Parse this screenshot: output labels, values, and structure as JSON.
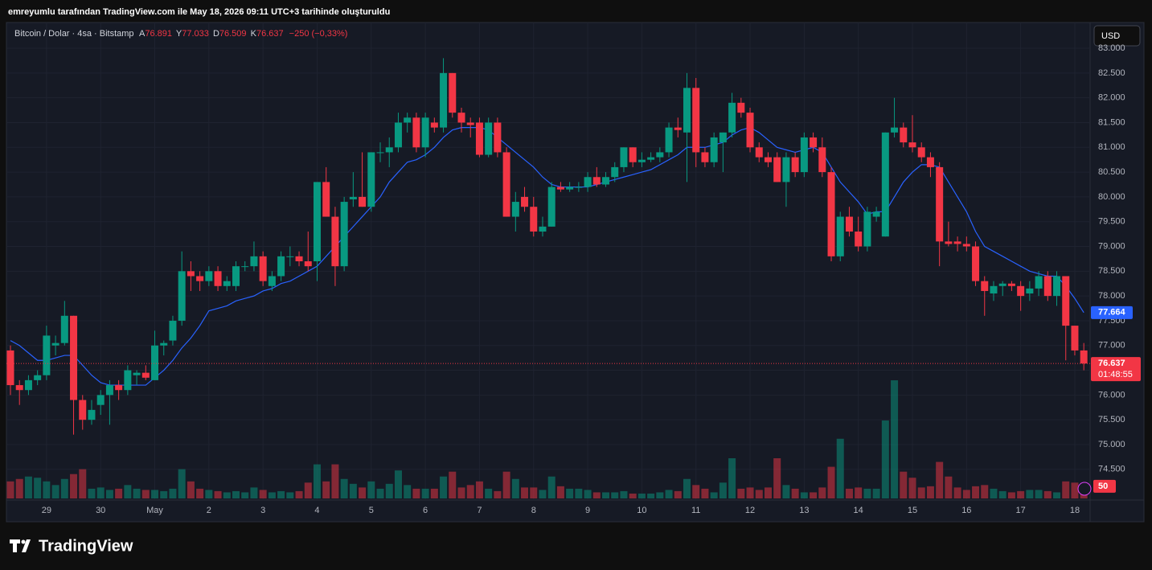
{
  "header": {
    "caption": "emreyumlu tarafından TradingView.com ile May 18, 2026 09:11 UTC+3 tarihinde oluşturuldu"
  },
  "legend": {
    "symbol": "Bitcoin / Dolar · 4sa · Bitstamp",
    "o_key": "A",
    "o": "76.891",
    "h_key": "Y",
    "h": "77.033",
    "l_key": "D",
    "l": "76.509",
    "c_key": "K",
    "c": "76.637",
    "change": "−250 (−0,33%)"
  },
  "currency_button": "USD",
  "logo": "TradingView",
  "chart_data": {
    "type": "candlestick",
    "up_color": "#089981",
    "down_color": "#f23645",
    "ma_color": "#2962ff",
    "grid": true,
    "ylim": [
      73880,
      83520
    ],
    "yticks": [
      {
        "value": 74500,
        "label": "74.500"
      },
      {
        "value": 75000,
        "label": "75.000"
      },
      {
        "value": 75500,
        "label": "75.500"
      },
      {
        "value": 76000,
        "label": "76.000"
      },
      {
        "value": 76500,
        "label": "76.500"
      },
      {
        "value": 77000,
        "label": "77.000"
      },
      {
        "value": 77500,
        "label": "77.500"
      },
      {
        "value": 78000,
        "label": "78.000"
      },
      {
        "value": 78500,
        "label": "78.500"
      },
      {
        "value": 79000,
        "label": "79.000"
      },
      {
        "value": 79500,
        "label": "79.500"
      },
      {
        "value": 80000,
        "label": "80.000"
      },
      {
        "value": 80500,
        "label": "80.500"
      },
      {
        "value": 81000,
        "label": "81.000"
      },
      {
        "value": 81500,
        "label": "81.500"
      },
      {
        "value": 82000,
        "label": "82.000"
      },
      {
        "value": 82500,
        "label": "82.500"
      },
      {
        "value": 83000,
        "label": "83.000"
      }
    ],
    "categories": [
      null,
      null,
      null,
      null,
      "29",
      null,
      null,
      null,
      null,
      null,
      "30",
      null,
      null,
      null,
      null,
      null,
      "May",
      null,
      null,
      null,
      null,
      null,
      "2",
      null,
      null,
      null,
      null,
      null,
      "3",
      null,
      null,
      null,
      null,
      null,
      "4",
      null,
      null,
      null,
      null,
      null,
      "5",
      null,
      null,
      null,
      null,
      null,
      "6",
      null,
      null,
      null,
      null,
      null,
      "7",
      null,
      null,
      null,
      null,
      null,
      "8",
      null,
      null,
      null,
      null,
      null,
      "9",
      null,
      null,
      null,
      null,
      null,
      "10",
      null,
      null,
      null,
      null,
      null,
      "11",
      null,
      null,
      null,
      null,
      null,
      "12",
      null,
      null,
      null,
      null,
      null,
      "13",
      null,
      null,
      null,
      null,
      null,
      "14",
      null,
      null,
      null,
      null,
      null,
      "15",
      null,
      null,
      null,
      null,
      null,
      "16",
      null,
      null,
      null,
      null,
      null,
      "17",
      null,
      null,
      null,
      null,
      null,
      "18",
      null
    ],
    "ohlc": [
      [
        76900,
        77000,
        76000,
        76200
      ],
      [
        76200,
        76300,
        75800,
        76100
      ],
      [
        76100,
        76400,
        76000,
        76300
      ],
      [
        76300,
        76500,
        76200,
        76400
      ],
      [
        76400,
        77400,
        76300,
        77200
      ],
      [
        77000,
        77200,
        76800,
        77050
      ],
      [
        77050,
        77900,
        77000,
        77600
      ],
      [
        77600,
        77600,
        75200,
        75900
      ],
      [
        75900,
        76000,
        75300,
        75500
      ],
      [
        75500,
        75900,
        75400,
        75700
      ],
      [
        75800,
        76100,
        75600,
        76000
      ],
      [
        76000,
        76300,
        75400,
        76200
      ],
      [
        76200,
        76300,
        75900,
        76100
      ],
      [
        76100,
        76600,
        76000,
        76500
      ],
      [
        76400,
        76500,
        76200,
        76450
      ],
      [
        76450,
        76600,
        76300,
        76350
      ],
      [
        76300,
        77300,
        76300,
        77000
      ],
      [
        77000,
        77100,
        76800,
        77050
      ],
      [
        77100,
        77600,
        77000,
        77500
      ],
      [
        77500,
        78900,
        77400,
        78500
      ],
      [
        78500,
        78700,
        78100,
        78400
      ],
      [
        78400,
        78500,
        78100,
        78300
      ],
      [
        78300,
        78600,
        78200,
        78500
      ],
      [
        78500,
        78600,
        78100,
        78200
      ],
      [
        78200,
        78400,
        78100,
        78300
      ],
      [
        78200,
        78700,
        78100,
        78600
      ],
      [
        78600,
        78700,
        78500,
        78600
      ],
      [
        78600,
        79100,
        78500,
        78800
      ],
      [
        78800,
        78900,
        78200,
        78300
      ],
      [
        78200,
        78500,
        78100,
        78400
      ],
      [
        78400,
        78900,
        78300,
        78800
      ],
      [
        78800,
        79000,
        78600,
        78800
      ],
      [
        78800,
        78900,
        78600,
        78700
      ],
      [
        78700,
        79300,
        78500,
        78600
      ],
      [
        78700,
        80300,
        78300,
        80300
      ],
      [
        80300,
        80600,
        79600,
        79600
      ],
      [
        79600,
        79800,
        78200,
        78600
      ],
      [
        78600,
        80000,
        78500,
        79900
      ],
      [
        79950,
        80500,
        79800,
        80000
      ],
      [
        80000,
        80900,
        79800,
        79800
      ],
      [
        79800,
        80900,
        79700,
        80900
      ],
      [
        80900,
        81100,
        80700,
        80900
      ],
      [
        80900,
        81200,
        80600,
        81000
      ],
      [
        81000,
        81700,
        80900,
        81500
      ],
      [
        81500,
        81700,
        81300,
        81600
      ],
      [
        81600,
        81700,
        80900,
        81000
      ],
      [
        81000,
        81700,
        80800,
        81600
      ],
      [
        81500,
        81600,
        81300,
        81400
      ],
      [
        81400,
        82800,
        81300,
        82500
      ],
      [
        82500,
        82500,
        81600,
        81700
      ],
      [
        81700,
        81800,
        81300,
        81500
      ],
      [
        81500,
        81600,
        81200,
        81450
      ],
      [
        81500,
        81600,
        80800,
        80850
      ],
      [
        80850,
        81600,
        80800,
        81500
      ],
      [
        81500,
        81600,
        80800,
        80900
      ],
      [
        80900,
        81000,
        79600,
        79600
      ],
      [
        79600,
        80100,
        79300,
        79900
      ],
      [
        80000,
        80200,
        79700,
        79800
      ],
      [
        79800,
        80000,
        79200,
        79300
      ],
      [
        79300,
        79600,
        79200,
        79400
      ],
      [
        79400,
        80300,
        79400,
        80200
      ],
      [
        80200,
        80300,
        80100,
        80150
      ],
      [
        80150,
        80300,
        80100,
        80200
      ],
      [
        80200,
        80300,
        80100,
        80200
      ],
      [
        80200,
        80500,
        80100,
        80400
      ],
      [
        80400,
        80600,
        80200,
        80250
      ],
      [
        80250,
        80500,
        80200,
        80400
      ],
      [
        80400,
        80700,
        80300,
        80600
      ],
      [
        80600,
        81000,
        80500,
        81000
      ],
      [
        81000,
        81000,
        80600,
        80700
      ],
      [
        80700,
        80900,
        80600,
        80750
      ],
      [
        80750,
        80900,
        80700,
        80800
      ],
      [
        80800,
        81000,
        80700,
        80900
      ],
      [
        80900,
        81500,
        80800,
        81400
      ],
      [
        81400,
        81600,
        81200,
        81350
      ],
      [
        81300,
        82500,
        80300,
        82200
      ],
      [
        82200,
        82400,
        80600,
        80900
      ],
      [
        80900,
        81000,
        80600,
        80700
      ],
      [
        80700,
        81300,
        80600,
        81200
      ],
      [
        81100,
        81300,
        80500,
        81300
      ],
      [
        81300,
        82100,
        81200,
        81900
      ],
      [
        81900,
        82000,
        81600,
        81700
      ],
      [
        81700,
        81800,
        80900,
        81000
      ],
      [
        81000,
        81100,
        80700,
        80800
      ],
      [
        80800,
        80900,
        80600,
        80700
      ],
      [
        80800,
        80900,
        80300,
        80300
      ],
      [
        80300,
        80900,
        79800,
        80800
      ],
      [
        80800,
        80900,
        80400,
        80500
      ],
      [
        80500,
        81300,
        80400,
        81200
      ],
      [
        81200,
        81300,
        80900,
        81000
      ],
      [
        81000,
        81200,
        80400,
        80500
      ],
      [
        80500,
        80600,
        78700,
        78800
      ],
      [
        78800,
        79700,
        78700,
        79600
      ],
      [
        79600,
        79800,
        79200,
        79300
      ],
      [
        79300,
        79600,
        78900,
        79000
      ],
      [
        79000,
        79800,
        78900,
        79700
      ],
      [
        79600,
        79800,
        79500,
        79700
      ],
      [
        79200,
        81300,
        79200,
        81300
      ],
      [
        81300,
        82000,
        81200,
        81400
      ],
      [
        81400,
        81500,
        81000,
        81100
      ],
      [
        81100,
        81650,
        80900,
        81000
      ],
      [
        81000,
        81100,
        80700,
        80800
      ],
      [
        80800,
        80900,
        80400,
        80600
      ],
      [
        80600,
        80700,
        78600,
        79100
      ],
      [
        79100,
        79500,
        79000,
        79050
      ],
      [
        79100,
        79200,
        78900,
        79050
      ],
      [
        79050,
        79200,
        78900,
        79000
      ],
      [
        79000,
        79100,
        78200,
        78300
      ],
      [
        78300,
        78400,
        77600,
        78100
      ],
      [
        78050,
        78300,
        77900,
        78200
      ],
      [
        78200,
        78300,
        78000,
        78250
      ],
      [
        78250,
        78300,
        78100,
        78200
      ],
      [
        78200,
        78300,
        77700,
        78000
      ],
      [
        78050,
        78300,
        77900,
        78150
      ],
      [
        78150,
        78500,
        78000,
        78400
      ],
      [
        78400,
        78500,
        77900,
        78000
      ],
      [
        78000,
        78500,
        77800,
        78400
      ],
      [
        78400,
        78400,
        76700,
        77400
      ],
      [
        77400,
        77400,
        76800,
        76900
      ],
      [
        76900,
        77050,
        76500,
        76637
      ]
    ],
    "volume": [
      70,
      80,
      90,
      85,
      70,
      55,
      80,
      100,
      120,
      40,
      45,
      35,
      40,
      55,
      40,
      35,
      35,
      30,
      40,
      120,
      70,
      40,
      35,
      30,
      25,
      30,
      25,
      45,
      35,
      25,
      30,
      25,
      30,
      65,
      140,
      70,
      140,
      80,
      60,
      45,
      70,
      40,
      60,
      115,
      55,
      40,
      40,
      40,
      90,
      110,
      45,
      55,
      70,
      40,
      30,
      110,
      80,
      45,
      45,
      35,
      90,
      50,
      40,
      40,
      35,
      25,
      25,
      25,
      30,
      20,
      20,
      20,
      25,
      35,
      30,
      80,
      55,
      40,
      25,
      65,
      165,
      40,
      45,
      35,
      45,
      165,
      55,
      40,
      25,
      25,
      45,
      130,
      245,
      40,
      45,
      40,
      40,
      320,
      485,
      110,
      85,
      45,
      50,
      150,
      90,
      45,
      35,
      50,
      55,
      40,
      30,
      25,
      30,
      35,
      35,
      30,
      25,
      70,
      65,
      50
    ],
    "ma": [
      77100,
      77000,
      76850,
      76700,
      76700,
      76750,
      76800,
      76800,
      76600,
      76400,
      76250,
      76200,
      76200,
      76200,
      76200,
      76200,
      76350,
      76500,
      76700,
      76950,
      77150,
      77400,
      77700,
      77750,
      77800,
      77900,
      77950,
      78000,
      78100,
      78150,
      78250,
      78300,
      78400,
      78500,
      78600,
      78800,
      79000,
      79200,
      79400,
      79600,
      79800,
      80000,
      80300,
      80500,
      80700,
      80750,
      80850,
      81000,
      81200,
      81350,
      81400,
      81400,
      81400,
      81350,
      81200,
      81050,
      80900,
      80750,
      80600,
      80400,
      80250,
      80200,
      80200,
      80200,
      80200,
      80250,
      80300,
      80350,
      80400,
      80450,
      80500,
      80550,
      80650,
      80750,
      80850,
      81000,
      81000,
      81000,
      81050,
      81100,
      81250,
      81350,
      81400,
      81300,
      81150,
      81000,
      80950,
      80900,
      80950,
      81000,
      80900,
      80600,
      80300,
      80100,
      79900,
      79650,
      79700,
      79700,
      80000,
      80300,
      80500,
      80650,
      80650,
      80600,
      80300,
      80000,
      79700,
      79300,
      79000,
      78900,
      78800,
      78700,
      78600,
      78500,
      78450,
      78400,
      78400,
      78200,
      77950,
      77664
    ],
    "last_label": "76.637",
    "ma_label": "77.664",
    "volume_label": "50",
    "countdown": "01:48:55"
  }
}
